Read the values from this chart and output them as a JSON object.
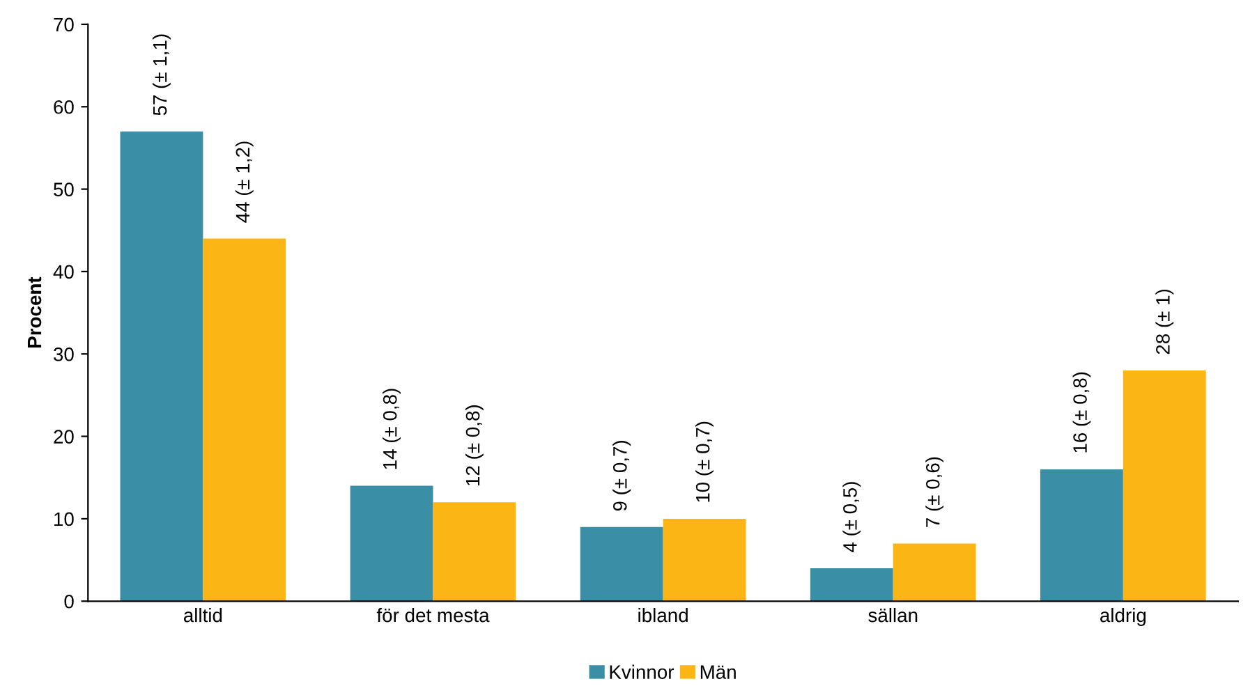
{
  "chart_data": {
    "type": "bar",
    "ylabel": "Procent",
    "categories": [
      "alltid",
      "för det mesta",
      "ibland",
      "sällan",
      "aldrig"
    ],
    "series": [
      {
        "name": "Kvinnor",
        "color": "#3a8fa6",
        "values": [
          57,
          14,
          9,
          4,
          16
        ],
        "value_labels": [
          "57 (± 1,1)",
          "14 (± 0,8)",
          "9 (± 0,7)",
          "4 (± 0,5)",
          "16 (± 0,8)"
        ]
      },
      {
        "name": "Män",
        "color": "#fbb616",
        "values": [
          44,
          12,
          10,
          7,
          28
        ],
        "value_labels": [
          "44 (± 1,2)",
          "12 (± 0,8)",
          "10 (± 0,7)",
          "7 (± 0,6)",
          "28 (± 1)"
        ]
      }
    ],
    "ylim": [
      0,
      70
    ],
    "yticks": [
      0,
      10,
      20,
      30,
      40,
      50,
      60,
      70
    ],
    "grid": false,
    "legend": "bottom"
  }
}
